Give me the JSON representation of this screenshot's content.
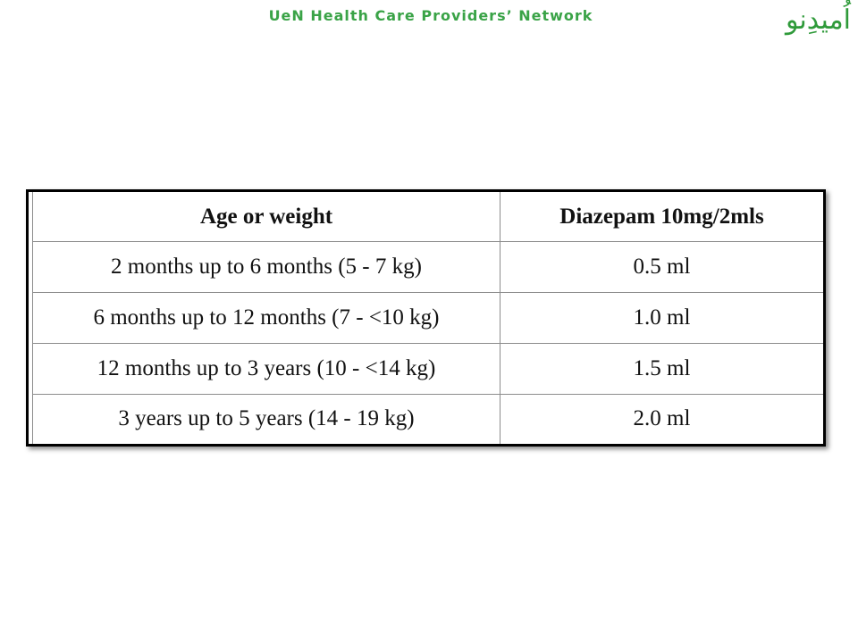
{
  "header": {
    "title": "UeN Health Care Providers’ Network",
    "logo_text": "اُمیدِنو"
  },
  "table": {
    "columns": [
      "Age or weight",
      "Diazepam  10mg/2mls"
    ],
    "rows": [
      [
        "2 months up to 6 months (5 - 7 kg)",
        "0.5 ml"
      ],
      [
        "6 months up to 12 months (7 - <10 kg)",
        "1.0 ml"
      ],
      [
        "12 months up to 3 years (10 - <14 kg)",
        "1.5 ml"
      ],
      [
        "3 years up to 5 years (14 - 19 kg)",
        "2.0 ml"
      ]
    ]
  },
  "colors": {
    "header_green": "#3aa347",
    "logo_green": "#2f9a3a",
    "border": "#000000"
  }
}
